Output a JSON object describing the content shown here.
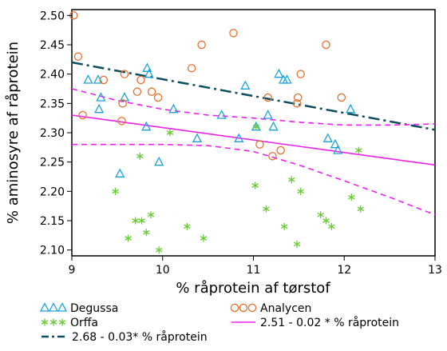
{
  "chart_data": {
    "type": "scatter",
    "xlabel": "% råprotein af tørstof",
    "ylabel": "% aminosyre af råprotein",
    "xlim": [
      9,
      13
    ],
    "ylim": [
      2.09,
      2.51
    ],
    "xticks": [
      "9",
      "10",
      "11",
      "12",
      "13"
    ],
    "yticks": [
      "2.10",
      "2.15",
      "2.20",
      "2.25",
      "2.30",
      "2.35",
      "2.40",
      "2.45",
      "2.50"
    ],
    "grid": false,
    "legend_position": "bottom",
    "series": [
      {
        "name": "Degussa",
        "marker": "triangle",
        "color": "#1aa3d9",
        "points": [
          [
            9.18,
            2.39
          ],
          [
            9.29,
            2.39
          ],
          [
            9.3,
            2.34
          ],
          [
            9.32,
            2.36
          ],
          [
            9.53,
            2.23
          ],
          [
            9.58,
            2.36
          ],
          [
            9.82,
            2.31
          ],
          [
            9.83,
            2.41
          ],
          [
            9.85,
            2.4
          ],
          [
            9.96,
            2.25
          ],
          [
            10.12,
            2.34
          ],
          [
            10.38,
            2.29
          ],
          [
            10.65,
            2.33
          ],
          [
            10.84,
            2.29
          ],
          [
            10.91,
            2.38
          ],
          [
            11.03,
            2.31
          ],
          [
            11.16,
            2.33
          ],
          [
            11.22,
            2.31
          ],
          [
            11.28,
            2.4
          ],
          [
            11.33,
            2.39
          ],
          [
            11.37,
            2.39
          ],
          [
            11.82,
            2.29
          ],
          [
            11.9,
            2.28
          ],
          [
            12.07,
            2.34
          ],
          [
            11.93,
            2.27
          ]
        ]
      },
      {
        "name": "Analycen",
        "marker": "circle",
        "color": "#e8702a",
        "points": [
          [
            9.02,
            2.5
          ],
          [
            9.07,
            2.43
          ],
          [
            9.12,
            2.33
          ],
          [
            9.35,
            2.39
          ],
          [
            9.55,
            2.32
          ],
          [
            9.56,
            2.35
          ],
          [
            9.58,
            2.4
          ],
          [
            9.72,
            2.37
          ],
          [
            9.76,
            2.39
          ],
          [
            9.88,
            2.37
          ],
          [
            9.95,
            2.36
          ],
          [
            10.32,
            2.41
          ],
          [
            10.43,
            2.45
          ],
          [
            10.78,
            2.47
          ],
          [
            11.07,
            2.28
          ],
          [
            11.16,
            2.36
          ],
          [
            11.21,
            2.26
          ],
          [
            11.3,
            2.27
          ],
          [
            11.48,
            2.35
          ],
          [
            11.49,
            2.36
          ],
          [
            11.52,
            2.4
          ],
          [
            11.8,
            2.45
          ],
          [
            11.97,
            2.36
          ]
        ]
      },
      {
        "name": "Orffa",
        "marker": "asterisk",
        "color": "#66cc33",
        "points": [
          [
            9.48,
            2.2
          ],
          [
            9.62,
            2.12
          ],
          [
            9.7,
            2.15
          ],
          [
            9.75,
            2.26
          ],
          [
            9.77,
            2.15
          ],
          [
            9.82,
            2.13
          ],
          [
            9.87,
            2.16
          ],
          [
            9.96,
            2.1
          ],
          [
            10.08,
            2.3
          ],
          [
            10.27,
            2.14
          ],
          [
            10.45,
            2.12
          ],
          [
            11.02,
            2.21
          ],
          [
            11.14,
            2.17
          ],
          [
            11.34,
            2.14
          ],
          [
            11.42,
            2.22
          ],
          [
            11.52,
            2.2
          ],
          [
            11.48,
            2.11
          ],
          [
            11.74,
            2.16
          ],
          [
            11.8,
            2.15
          ],
          [
            11.86,
            2.14
          ],
          [
            12.08,
            2.19
          ],
          [
            12.16,
            2.27
          ],
          [
            12.18,
            2.17
          ],
          [
            11.03,
            2.31
          ]
        ]
      }
    ],
    "lines": [
      {
        "name": "2.68 - 0.03* % råprotein",
        "style": "dashdot",
        "color": "#0c4d5e",
        "x": [
          9,
          13
        ],
        "y": [
          2.42,
          2.305
        ]
      },
      {
        "name": "2.51 - 0.02 * % råprotein",
        "style": "solid",
        "color": "#ee22ee",
        "x": [
          9,
          13
        ],
        "y": [
          2.33,
          2.245
        ]
      },
      {
        "name": "",
        "style": "dashed",
        "color": "#ee22ee",
        "x": [
          9.0,
          9.5,
          10.0,
          10.5,
          11.0,
          11.5,
          12.0,
          12.5,
          13.0
        ],
        "y": [
          2.375,
          2.355,
          2.34,
          2.33,
          2.325,
          2.318,
          2.313,
          2.313,
          2.315
        ]
      },
      {
        "name": "",
        "style": "dashed",
        "color": "#ee22ee",
        "x": [
          9.0,
          9.5,
          10.0,
          10.5,
          11.0,
          11.5,
          12.0,
          12.5,
          13.0
        ],
        "y": [
          2.28,
          2.28,
          2.28,
          2.278,
          2.268,
          2.245,
          2.218,
          2.19,
          2.16
        ]
      }
    ]
  },
  "legend": {
    "items": [
      {
        "label": "Degussa",
        "kind": "triangle",
        "color": "#1aa3d9"
      },
      {
        "label": "Analycen",
        "kind": "circle",
        "color": "#e8702a"
      },
      {
        "label": "Orffa",
        "kind": "asterisk",
        "color": "#66cc33"
      },
      {
        "label": "2.51 - 0.02 * % råprotein",
        "kind": "solid",
        "color": "#ee22ee"
      },
      {
        "label": "2.68 - 0.03* % råprotein",
        "kind": "dashdot",
        "color": "#0c4d5e"
      }
    ]
  }
}
